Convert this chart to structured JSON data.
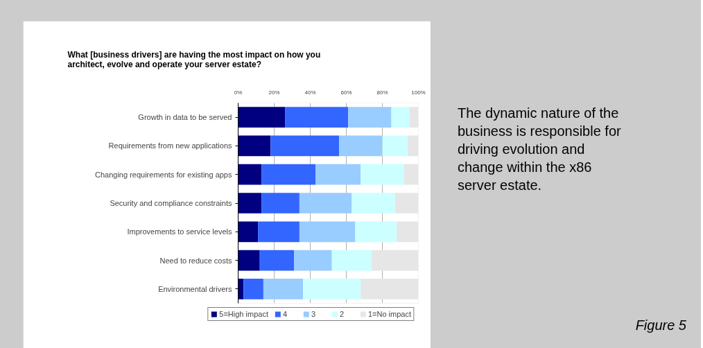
{
  "chart_data": {
    "type": "bar",
    "orientation": "horizontal",
    "stacked": true,
    "title": "What [business drivers] are having the most impact on how you architect, evolve and operate your server estate?",
    "categories": [
      "Growth in data to be served",
      "Requirements from new applications",
      "Changing requirements for existing apps",
      "Security and compliance constraints",
      "Improvements to service levels",
      "Need to reduce costs",
      "Environmental drivers"
    ],
    "series": [
      {
        "name": "5=High impact",
        "color": "#000080",
        "values": [
          26,
          18,
          13,
          13,
          11,
          12,
          3
        ]
      },
      {
        "name": "4",
        "color": "#3366ff",
        "values": [
          35,
          38,
          30,
          21,
          23,
          19,
          11
        ]
      },
      {
        "name": "3",
        "color": "#99ccff",
        "values": [
          24,
          24,
          25,
          29,
          31,
          21,
          22
        ]
      },
      {
        "name": "2",
        "color": "#ccffff",
        "values": [
          10,
          14,
          24,
          24,
          23,
          22,
          32
        ]
      },
      {
        "name": "1=No impact",
        "color": "#e6e6e6",
        "values": [
          5,
          6,
          8,
          13,
          12,
          26,
          32
        ]
      }
    ],
    "xlim": [
      0,
      100
    ],
    "xticks": [
      {
        "value": 0,
        "label": "0%"
      },
      {
        "value": 20,
        "label": "20%"
      },
      {
        "value": 40,
        "label": "40%"
      },
      {
        "value": 60,
        "label": "60%"
      },
      {
        "value": 80,
        "label": "80%"
      },
      {
        "value": 100,
        "label": "100%"
      }
    ],
    "grid": "x",
    "legend": "bottom",
    "annotations": [
      "The dynamic nature of the business is responsible for driving evolution and change within the x86 server estate.",
      "Figure 5"
    ]
  }
}
